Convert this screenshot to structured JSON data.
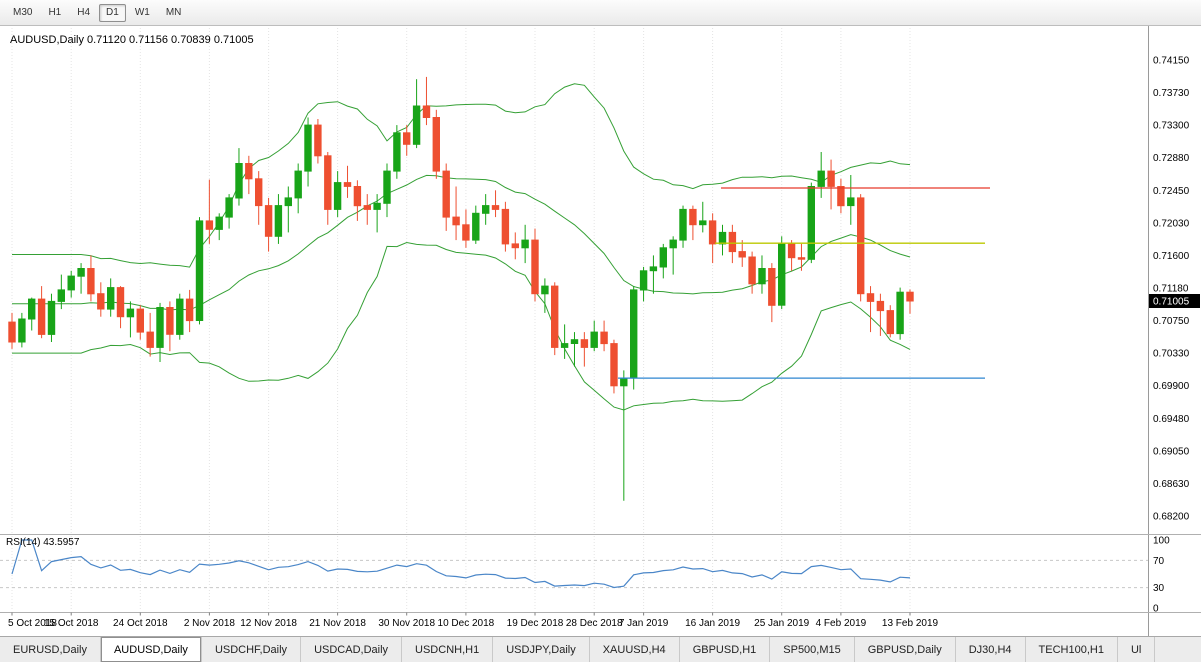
{
  "toolbar": {
    "timeframes": [
      {
        "label": "M30",
        "active": false
      },
      {
        "label": "H1",
        "active": false
      },
      {
        "label": "H4",
        "active": false
      },
      {
        "label": "D1",
        "active": true
      },
      {
        "label": "W1",
        "active": false
      },
      {
        "label": "MN",
        "active": false
      }
    ]
  },
  "chart": {
    "title": "AUDUSD,Daily 0.71120 0.71156 0.70839 0.71005",
    "symbol": "AUDUSD,Daily",
    "current_price": "0.71005",
    "rsi_label": "RSI(14) 43.5957"
  },
  "chart_data": {
    "type": "candlestick",
    "symbol": "AUDUSD",
    "period": "Daily",
    "ohlc_display": {
      "open": "0.71120",
      "high": "0.71156",
      "low": "0.70839",
      "close": "0.71005"
    },
    "ylim": [
      0.682,
      0.7415
    ],
    "y_axis_labels": [
      "0.74150",
      "0.73730",
      "0.73300",
      "0.72880",
      "0.72450",
      "0.72030",
      "0.71600",
      "0.71180",
      "0.70750",
      "0.70330",
      "0.69900",
      "0.69480",
      "0.69050",
      "0.68630",
      "0.68200"
    ],
    "x_axis_labels": [
      "5 Oct 2018",
      "15 Oct 2018",
      "24 Oct 2018",
      "2 Nov 2018",
      "12 Nov 2018",
      "21 Nov 2018",
      "30 Nov 2018",
      "10 Dec 2018",
      "19 Dec 2018",
      "28 Dec 2018",
      "7 Jan 2019",
      "16 Jan 2019",
      "25 Jan 2019",
      "4 Feb 2019",
      "13 Feb 2019"
    ],
    "x_label_candle_indices": [
      0,
      6,
      13,
      20,
      26,
      33,
      40,
      46,
      53,
      59,
      64,
      71,
      78,
      84,
      91
    ],
    "colors": {
      "up": "#18a418",
      "down": "#ee4f30",
      "grid": "#e4e4e4",
      "badge_bg": "#000000"
    },
    "candles_ohlc": [
      [
        0.7073,
        0.7085,
        0.7038,
        0.7047
      ],
      [
        0.7047,
        0.7085,
        0.704,
        0.7077
      ],
      [
        0.7077,
        0.7105,
        0.7062,
        0.7103
      ],
      [
        0.7103,
        0.712,
        0.7052,
        0.7057
      ],
      [
        0.7057,
        0.711,
        0.7047,
        0.71
      ],
      [
        0.71,
        0.7135,
        0.709,
        0.7115
      ],
      [
        0.7115,
        0.714,
        0.7105,
        0.7133
      ],
      [
        0.7133,
        0.715,
        0.711,
        0.7143
      ],
      [
        0.7143,
        0.716,
        0.71,
        0.711
      ],
      [
        0.711,
        0.7125,
        0.708,
        0.709
      ],
      [
        0.709,
        0.713,
        0.708,
        0.7118
      ],
      [
        0.7118,
        0.712,
        0.7065,
        0.708
      ],
      [
        0.708,
        0.71,
        0.7053,
        0.709
      ],
      [
        0.709,
        0.7095,
        0.705,
        0.706
      ],
      [
        0.706,
        0.7085,
        0.7028,
        0.704
      ],
      [
        0.704,
        0.7098,
        0.7021,
        0.7092
      ],
      [
        0.7092,
        0.71,
        0.7035,
        0.7057
      ],
      [
        0.7057,
        0.711,
        0.705,
        0.7103
      ],
      [
        0.7103,
        0.7115,
        0.706,
        0.7075
      ],
      [
        0.7075,
        0.721,
        0.707,
        0.7205
      ],
      [
        0.7205,
        0.7259,
        0.7175,
        0.7194
      ],
      [
        0.7194,
        0.7215,
        0.718,
        0.721
      ],
      [
        0.721,
        0.724,
        0.7195,
        0.7235
      ],
      [
        0.7235,
        0.73,
        0.7225,
        0.728
      ],
      [
        0.728,
        0.729,
        0.724,
        0.726
      ],
      [
        0.726,
        0.727,
        0.72,
        0.7225
      ],
      [
        0.7225,
        0.7235,
        0.7165,
        0.7185
      ],
      [
        0.7185,
        0.724,
        0.7175,
        0.7225
      ],
      [
        0.7225,
        0.725,
        0.719,
        0.7235
      ],
      [
        0.7235,
        0.728,
        0.7215,
        0.727
      ],
      [
        0.727,
        0.734,
        0.725,
        0.733
      ],
      [
        0.733,
        0.7338,
        0.728,
        0.729
      ],
      [
        0.729,
        0.7295,
        0.72,
        0.722
      ],
      [
        0.722,
        0.727,
        0.721,
        0.7255
      ],
      [
        0.7255,
        0.7277,
        0.7235,
        0.725
      ],
      [
        0.725,
        0.7258,
        0.7205,
        0.7225
      ],
      [
        0.7225,
        0.724,
        0.72,
        0.722
      ],
      [
        0.722,
        0.724,
        0.719,
        0.7228
      ],
      [
        0.7228,
        0.728,
        0.721,
        0.727
      ],
      [
        0.727,
        0.733,
        0.726,
        0.732
      ],
      [
        0.732,
        0.733,
        0.729,
        0.7305
      ],
      [
        0.7305,
        0.739,
        0.73,
        0.7355
      ],
      [
        0.7355,
        0.7393,
        0.733,
        0.734
      ],
      [
        0.734,
        0.735,
        0.726,
        0.727
      ],
      [
        0.727,
        0.728,
        0.7192,
        0.721
      ],
      [
        0.721,
        0.725,
        0.718,
        0.72
      ],
      [
        0.72,
        0.722,
        0.717,
        0.718
      ],
      [
        0.718,
        0.7225,
        0.7175,
        0.7215
      ],
      [
        0.7215,
        0.724,
        0.72,
        0.7225
      ],
      [
        0.7225,
        0.7245,
        0.721,
        0.722
      ],
      [
        0.722,
        0.723,
        0.7165,
        0.7175
      ],
      [
        0.7175,
        0.719,
        0.7155,
        0.717
      ],
      [
        0.717,
        0.72,
        0.715,
        0.718
      ],
      [
        0.718,
        0.7195,
        0.71,
        0.711
      ],
      [
        0.711,
        0.713,
        0.7085,
        0.712
      ],
      [
        0.712,
        0.7125,
        0.703,
        0.704
      ],
      [
        0.704,
        0.707,
        0.7025,
        0.7045
      ],
      [
        0.7045,
        0.706,
        0.7015,
        0.705
      ],
      [
        0.705,
        0.706,
        0.7015,
        0.704
      ],
      [
        0.704,
        0.7075,
        0.7035,
        0.706
      ],
      [
        0.706,
        0.7075,
        0.7035,
        0.7045
      ],
      [
        0.7045,
        0.705,
        0.698,
        0.699
      ],
      [
        0.699,
        0.701,
        0.684,
        0.7
      ],
      [
        0.7,
        0.712,
        0.6985,
        0.7115
      ],
      [
        0.7115,
        0.7145,
        0.71,
        0.714
      ],
      [
        0.714,
        0.716,
        0.711,
        0.7145
      ],
      [
        0.7145,
        0.7175,
        0.713,
        0.717
      ],
      [
        0.717,
        0.7185,
        0.7135,
        0.718
      ],
      [
        0.718,
        0.7225,
        0.717,
        0.722
      ],
      [
        0.722,
        0.7225,
        0.718,
        0.72
      ],
      [
        0.72,
        0.723,
        0.719,
        0.7205
      ],
      [
        0.7205,
        0.7215,
        0.715,
        0.7175
      ],
      [
        0.7175,
        0.72,
        0.716,
        0.719
      ],
      [
        0.719,
        0.72,
        0.715,
        0.7165
      ],
      [
        0.7165,
        0.718,
        0.7145,
        0.7158
      ],
      [
        0.7158,
        0.7165,
        0.711,
        0.7123
      ],
      [
        0.7123,
        0.716,
        0.711,
        0.7143
      ],
      [
        0.7143,
        0.715,
        0.7073,
        0.7095
      ],
      [
        0.7095,
        0.7185,
        0.709,
        0.7175
      ],
      [
        0.7175,
        0.718,
        0.714,
        0.7157
      ],
      [
        0.7157,
        0.7175,
        0.714,
        0.7155
      ],
      [
        0.7155,
        0.7255,
        0.715,
        0.725
      ],
      [
        0.725,
        0.7295,
        0.7235,
        0.727
      ],
      [
        0.727,
        0.7285,
        0.722,
        0.725
      ],
      [
        0.725,
        0.726,
        0.7215,
        0.7225
      ],
      [
        0.7225,
        0.7265,
        0.72,
        0.7235
      ],
      [
        0.7235,
        0.724,
        0.71,
        0.711
      ],
      [
        0.711,
        0.712,
        0.706,
        0.71
      ],
      [
        0.71,
        0.711,
        0.7055,
        0.7088
      ],
      [
        0.7088,
        0.7095,
        0.7053,
        0.7058
      ],
      [
        0.7058,
        0.7118,
        0.705,
        0.7112
      ],
      [
        0.7112,
        0.71156,
        0.70839,
        0.71005
      ]
    ],
    "indicators": {
      "bollinger_bands": {
        "period": 20,
        "deviation": 2,
        "color": "#35a035"
      },
      "rsi": {
        "period": 14,
        "value": "43.5957",
        "label": "RSI(14) 43.5957",
        "color": "#4a86c8",
        "levels": [
          70,
          30
        ],
        "scale_labels": [
          "100",
          "70",
          "30",
          "0"
        ]
      }
    },
    "horizontal_lines": [
      {
        "color": "#e8392b",
        "price": 0.7248,
        "x_from_frac": 0.628,
        "x_to_frac": 0.862
      },
      {
        "color": "#bcc800",
        "price": 0.7176,
        "x_from_frac": 0.623,
        "x_to_frac": 0.858
      },
      {
        "color": "#2e86d0",
        "price": 0.7,
        "x_from_frac": 0.538,
        "x_to_frac": 0.858
      }
    ],
    "current_price": "0.71005"
  },
  "tabs": [
    {
      "label": "EURUSD,Daily",
      "active": false
    },
    {
      "label": "AUDUSD,Daily",
      "active": true
    },
    {
      "label": "USDCHF,Daily",
      "active": false
    },
    {
      "label": "USDCAD,Daily",
      "active": false
    },
    {
      "label": "USDCNH,H1",
      "active": false
    },
    {
      "label": "USDJPY,Daily",
      "active": false
    },
    {
      "label": "XAUUSD,H4",
      "active": false
    },
    {
      "label": "GBPUSD,H1",
      "active": false
    },
    {
      "label": "SP500,M15",
      "active": false
    },
    {
      "label": "GBPUSD,Daily",
      "active": false
    },
    {
      "label": "DJ30,H4",
      "active": false
    },
    {
      "label": "TECH100,H1",
      "active": false
    },
    {
      "label": "Ul",
      "active": false
    }
  ]
}
